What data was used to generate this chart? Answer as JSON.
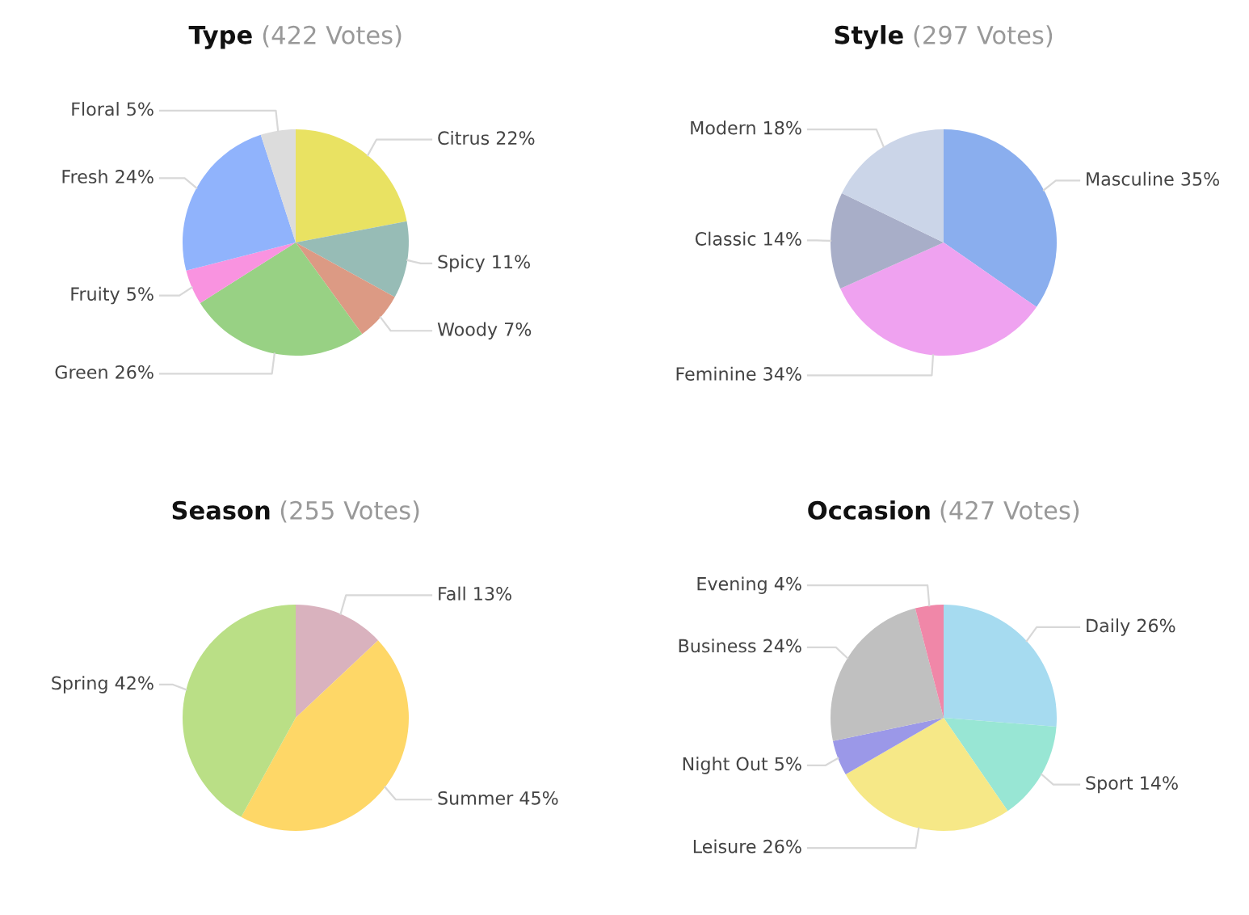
{
  "chart_data": [
    {
      "type": "pie",
      "title": "Type",
      "subtitle": "(422 Votes)",
      "categories": [
        "Citrus",
        "Spicy",
        "Woody",
        "Green",
        "Fruity",
        "Fresh",
        "Floral"
      ],
      "values": [
        22,
        11,
        7,
        26,
        5,
        24,
        5
      ],
      "value_labels": [
        "22%",
        "11%",
        "7%",
        "26%",
        "5%",
        "24%",
        "5%"
      ],
      "colors": [
        "#e9e262",
        "#97bcb6",
        "#dc9a84",
        "#98d184",
        "#f993e0",
        "#90b3fc",
        "#dcdcdc"
      ],
      "legend": false
    },
    {
      "type": "pie",
      "title": "Style",
      "subtitle": "(297 Votes)",
      "categories": [
        "Masculine",
        "Feminine",
        "Classic",
        "Modern"
      ],
      "values": [
        35,
        34,
        14,
        18
      ],
      "value_labels": [
        "35%",
        "34%",
        "14%",
        "18%"
      ],
      "colors": [
        "#8aaeee",
        "#efa2f0",
        "#a8aec8",
        "#cbd5e8"
      ],
      "legend": false
    },
    {
      "type": "pie",
      "title": "Season",
      "subtitle": "(255 Votes)",
      "categories": [
        "Fall",
        "Summer",
        "Spring"
      ],
      "values": [
        13,
        45,
        42
      ],
      "value_labels": [
        "13%",
        "45%",
        "42%"
      ],
      "colors": [
        "#d9b2be",
        "#fed767",
        "#badf86"
      ],
      "legend": false
    },
    {
      "type": "pie",
      "title": "Occasion",
      "subtitle": "(427 Votes)",
      "categories": [
        "Daily",
        "Sport",
        "Leisure",
        "Night Out",
        "Business",
        "Evening"
      ],
      "values": [
        26,
        14,
        26,
        5,
        24,
        4
      ],
      "value_labels": [
        "26%",
        "14%",
        "26%",
        "5%",
        "24%",
        "4%"
      ],
      "colors": [
        "#a6dbf0",
        "#98e6d4",
        "#f6e887",
        "#9b98e8",
        "#c0c0c0",
        "#f087a8"
      ],
      "legend": false
    }
  ]
}
